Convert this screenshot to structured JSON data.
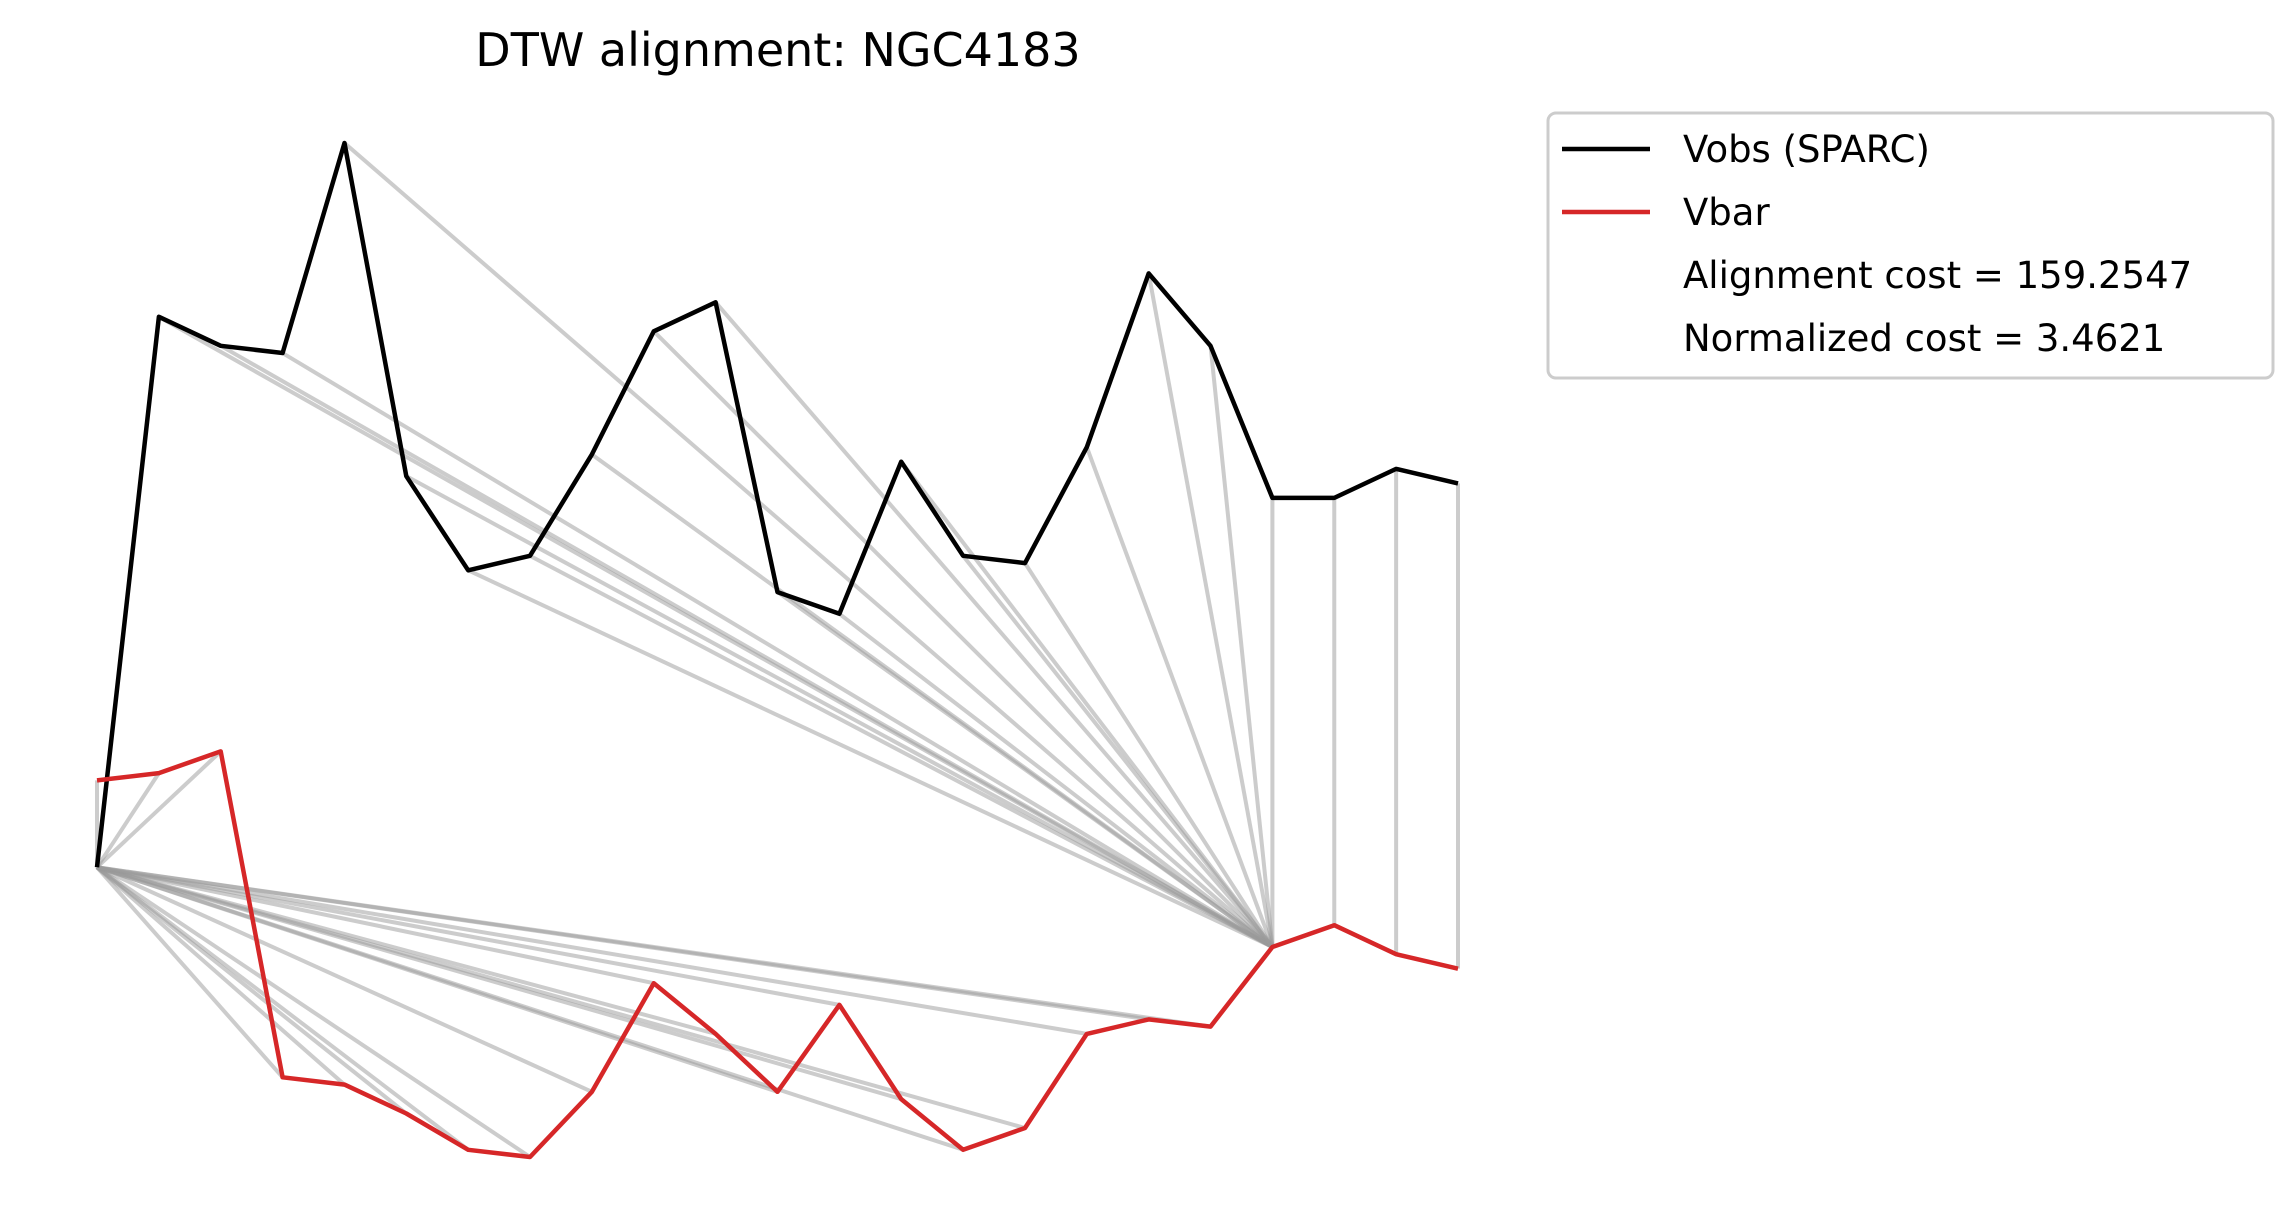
{
  "chart_data": {
    "type": "line",
    "title": "DTW alignment: NGC4183",
    "xlabel": "",
    "ylabel": "",
    "axes_visible": false,
    "grid": false,
    "legend_position": "outside-top-right",
    "series": [
      {
        "name": "Vobs (SPARC)",
        "color": "#000000",
        "values": [
          0.0,
          7.6,
          7.2,
          7.1,
          10.0,
          5.4,
          4.1,
          4.3,
          5.7,
          7.4,
          7.8,
          3.8,
          3.5,
          5.6,
          4.3,
          4.2,
          5.8,
          8.2,
          7.2,
          5.1,
          5.1,
          5.5,
          5.3
        ]
      },
      {
        "name": "Vbar",
        "color": "#d62728",
        "values": [
          1.2,
          1.3,
          1.6,
          -2.9,
          -3.0,
          -3.4,
          -3.9,
          -4.0,
          -3.1,
          -1.6,
          -2.3,
          -3.1,
          -1.9,
          -3.2,
          -3.9,
          -3.6,
          -2.3,
          -2.1,
          -2.2,
          -1.1,
          -0.8,
          -1.2,
          -1.4
        ]
      }
    ],
    "alignment_color": "#999999",
    "alignment_pairs": [
      [
        0,
        0
      ],
      [
        0,
        1
      ],
      [
        0,
        2
      ],
      [
        0,
        3
      ],
      [
        0,
        4
      ],
      [
        0,
        5
      ],
      [
        0,
        6
      ],
      [
        0,
        7
      ],
      [
        0,
        8
      ],
      [
        0,
        9
      ],
      [
        0,
        10
      ],
      [
        0,
        11
      ],
      [
        0,
        12
      ],
      [
        0,
        13
      ],
      [
        0,
        14
      ],
      [
        0,
        15
      ],
      [
        0,
        16
      ],
      [
        0,
        17
      ],
      [
        0,
        18
      ],
      [
        1,
        19
      ],
      [
        2,
        19
      ],
      [
        3,
        19
      ],
      [
        4,
        19
      ],
      [
        5,
        19
      ],
      [
        6,
        19
      ],
      [
        7,
        19
      ],
      [
        8,
        19
      ],
      [
        9,
        19
      ],
      [
        10,
        19
      ],
      [
        11,
        19
      ],
      [
        12,
        19
      ],
      [
        13,
        19
      ],
      [
        14,
        19
      ],
      [
        15,
        19
      ],
      [
        16,
        19
      ],
      [
        17,
        19
      ],
      [
        18,
        19
      ],
      [
        19,
        19
      ],
      [
        20,
        20
      ],
      [
        21,
        21
      ],
      [
        22,
        22
      ]
    ],
    "legend_entries": [
      {
        "label": "Vobs (SPARC)",
        "color": "#000000"
      },
      {
        "label": "Vbar",
        "color": "#d62728"
      },
      {
        "label": "Alignment cost = 159.2547",
        "color": ""
      },
      {
        "label": "Normalized cost = 3.4621",
        "color": ""
      }
    ]
  }
}
